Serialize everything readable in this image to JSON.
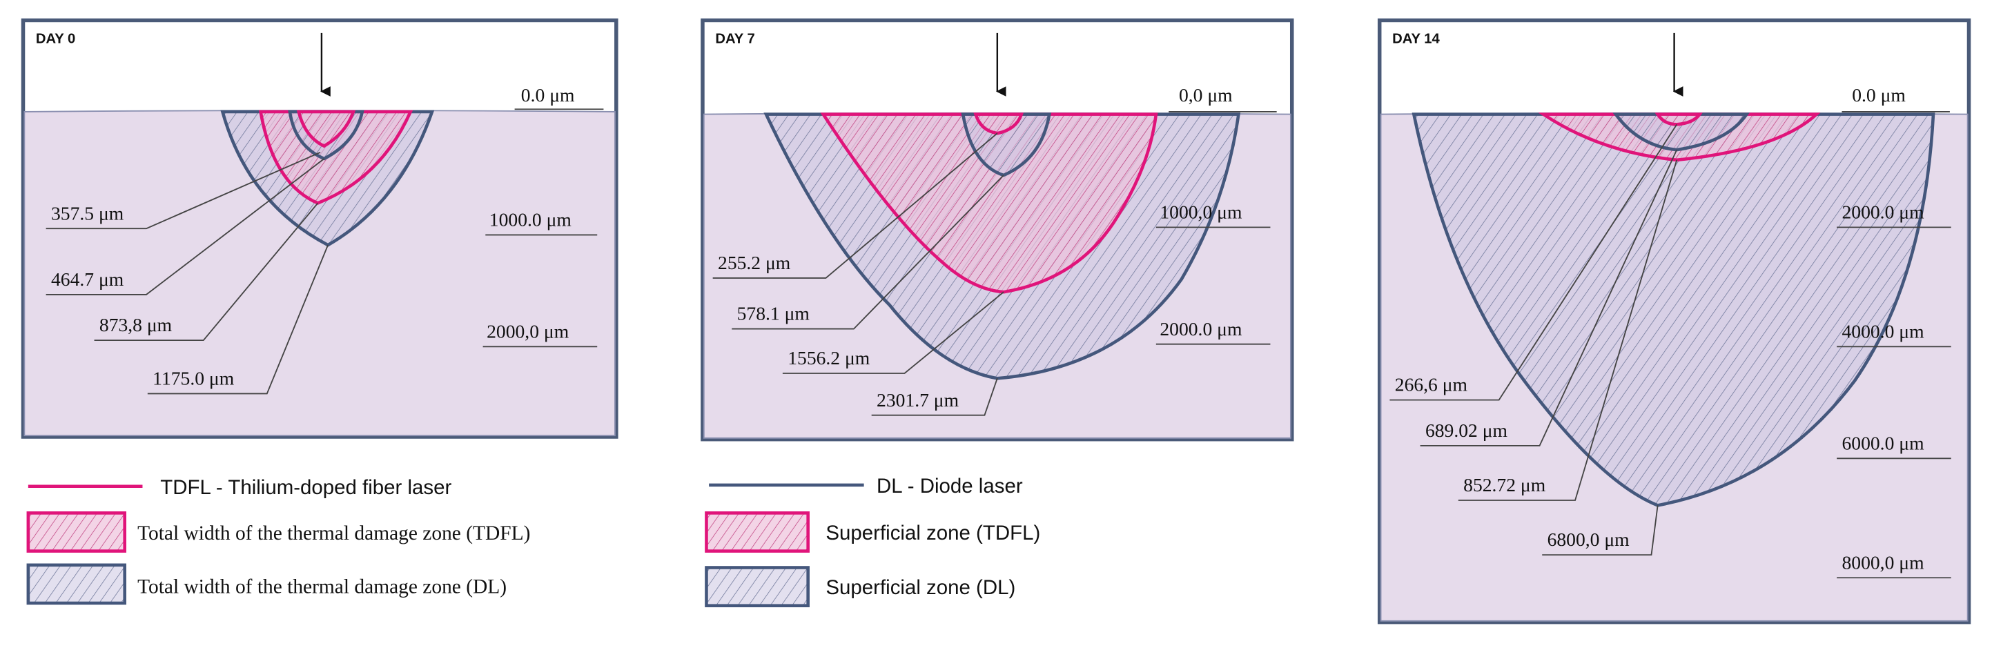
{
  "panels": [
    {
      "day": "DAY 0",
      "scale": [
        "0.0 μm",
        "1000.0 μm",
        "2000,0 μm"
      ],
      "measurements": [
        "357.5 μm",
        "464.7 μm",
        "873,8 μm",
        "1175.0 μm"
      ]
    },
    {
      "day": "DAY 7",
      "scale": [
        "0,0 μm",
        "1000,0 μm",
        "2000.0 μm"
      ],
      "measurements": [
        "255.2 μm",
        "578.1 μm",
        "1556.2 μm",
        "2301.7 μm"
      ]
    },
    {
      "day": "DAY 14",
      "scale": [
        "0.0 μm",
        "2000.0 μm",
        "4000.0 μm",
        "6000.0 μm",
        "8000,0 μm"
      ],
      "measurements": [
        "266,6 μm",
        "689.02 μm",
        "852.72 μm",
        "6800,0 μm"
      ]
    }
  ],
  "legend": {
    "tdfl_line": "TDFL - Thilium-doped fiber laser",
    "tdfl_total": "Total width of the thermal damage zone (TDFL)",
    "dl_total": "Total width of the thermal damage zone (DL)",
    "dl_line": "DL - Diode laser",
    "tdfl_superficial": "Superficial zone (TDFL)",
    "dl_superficial": "Superficial zone (DL)"
  }
}
